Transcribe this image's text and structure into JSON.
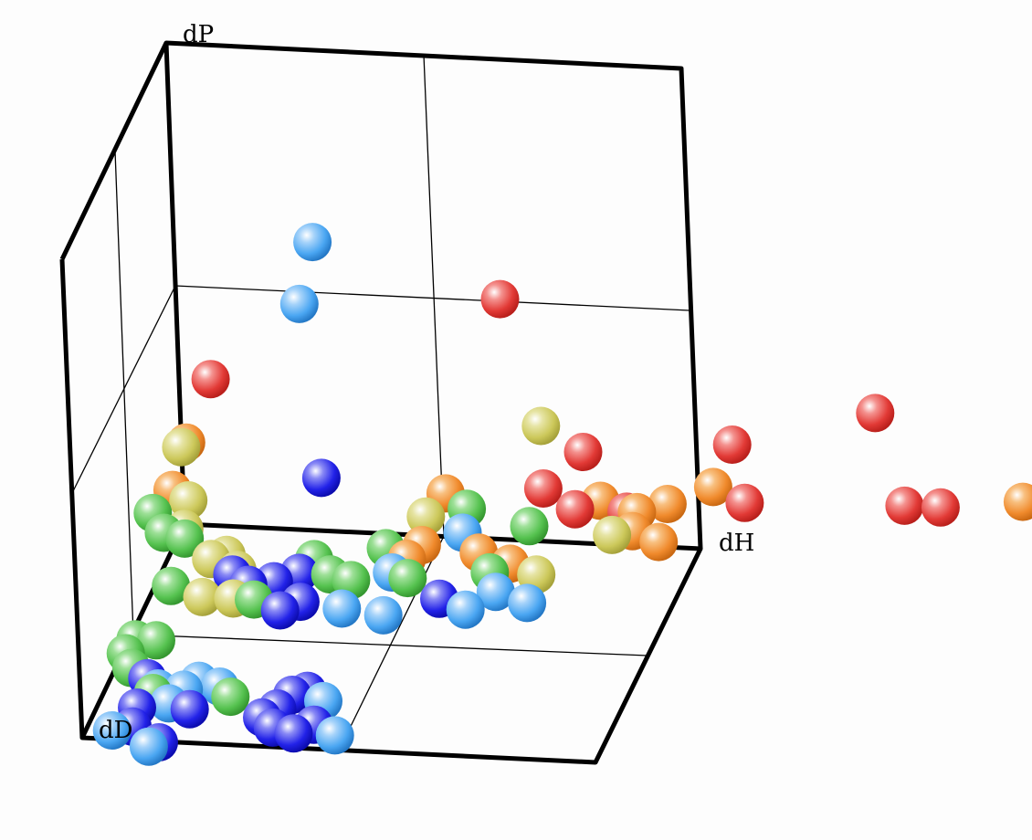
{
  "chart_data": {
    "type": "scatter",
    "subtype": "3d-scatter",
    "title": "",
    "axes": {
      "x_label": "dH",
      "y_label": "dP",
      "z_label": "dD"
    },
    "grid": true,
    "legend": "none",
    "colors": {
      "red": "#e23a36",
      "orange": "#f08a2c",
      "yellow": "#ccc85a",
      "green": "#55c24f",
      "lightblue": "#4aa6f2",
      "blue": "#2222e8"
    },
    "points": [
      {
        "x": 0.34,
        "y": 0.75,
        "z": 0.33,
        "color": "lightblue"
      },
      {
        "x": 0.31,
        "y": 0.62,
        "z": 0.33,
        "color": "lightblue"
      },
      {
        "x": 0.7,
        "y": 0.65,
        "z": 0.33,
        "color": "red"
      },
      {
        "x": 0.13,
        "y": 0.45,
        "z": 0.32,
        "color": "red"
      },
      {
        "x": 0.08,
        "y": 0.32,
        "z": 0.33,
        "color": "orange"
      },
      {
        "x": 0.07,
        "y": 0.31,
        "z": 0.33,
        "color": "yellow"
      },
      {
        "x": 0.34,
        "y": 0.26,
        "z": 0.33,
        "color": "blue"
      },
      {
        "x": 0.77,
        "y": 0.39,
        "z": 0.33,
        "color": "yellow"
      },
      {
        "x": 0.85,
        "y": 0.34,
        "z": 0.33,
        "color": "red"
      },
      {
        "x": 1.14,
        "y": 0.37,
        "z": 0.33,
        "color": "red"
      },
      {
        "x": 1.42,
        "y": 0.45,
        "z": 0.33,
        "color": "red"
      },
      {
        "x": 1.16,
        "y": 0.25,
        "z": 0.33,
        "color": "red"
      },
      {
        "x": 1.47,
        "y": 0.26,
        "z": 0.33,
        "color": "red"
      },
      {
        "x": 1.54,
        "y": 0.26,
        "z": 0.33,
        "color": "red"
      },
      {
        "x": 1.7,
        "y": 0.28,
        "z": 0.33,
        "color": "orange"
      },
      {
        "x": 1.1,
        "y": 0.28,
        "z": 0.33,
        "color": "orange"
      },
      {
        "x": 1.01,
        "y": 0.24,
        "z": 0.33,
        "color": "orange"
      },
      {
        "x": 0.95,
        "y": 0.22,
        "z": 0.33,
        "color": "orange"
      },
      {
        "x": 0.77,
        "y": 0.26,
        "z": 0.33,
        "color": "red"
      },
      {
        "x": 0.88,
        "y": 0.24,
        "z": 0.33,
        "color": "orange"
      },
      {
        "x": 0.93,
        "y": 0.22,
        "z": 0.33,
        "color": "red"
      },
      {
        "x": 0.94,
        "y": 0.18,
        "z": 0.33,
        "color": "orange"
      },
      {
        "x": 0.9,
        "y": 0.17,
        "z": 0.33,
        "color": "yellow"
      },
      {
        "x": 0.99,
        "y": 0.16,
        "z": 0.33,
        "color": "orange"
      },
      {
        "x": 0.83,
        "y": 0.22,
        "z": 0.33,
        "color": "red"
      },
      {
        "x": 0.58,
        "y": 0.24,
        "z": 0.33,
        "color": "orange"
      },
      {
        "x": 0.54,
        "y": 0.19,
        "z": 0.33,
        "color": "yellow"
      },
      {
        "x": 0.62,
        "y": 0.21,
        "z": 0.33,
        "color": "green"
      },
      {
        "x": 0.61,
        "y": 0.16,
        "z": 0.33,
        "color": "lightblue"
      },
      {
        "x": 0.64,
        "y": 0.12,
        "z": 0.33,
        "color": "orange"
      },
      {
        "x": 0.7,
        "y": 0.1,
        "z": 0.33,
        "color": "orange"
      },
      {
        "x": 0.74,
        "y": 0.18,
        "z": 0.33,
        "color": "green"
      },
      {
        "x": 0.75,
        "y": 0.08,
        "z": 0.33,
        "color": "yellow"
      },
      {
        "x": 0.53,
        "y": 0.13,
        "z": 0.33,
        "color": "orange"
      },
      {
        "x": 0.5,
        "y": 0.1,
        "z": 0.33,
        "color": "orange"
      },
      {
        "x": 0.46,
        "y": 0.12,
        "z": 0.33,
        "color": "green"
      },
      {
        "x": 0.47,
        "y": 0.07,
        "z": 0.33,
        "color": "lightblue"
      },
      {
        "x": 0.5,
        "y": 0.06,
        "z": 0.33,
        "color": "green"
      },
      {
        "x": 0.66,
        "y": 0.08,
        "z": 0.33,
        "color": "green"
      },
      {
        "x": 0.67,
        "y": 0.04,
        "z": 0.33,
        "color": "lightblue"
      },
      {
        "x": 0.73,
        "y": 0.02,
        "z": 0.33,
        "color": "lightblue"
      },
      {
        "x": 0.61,
        "y": 0.0,
        "z": 0.33,
        "color": "lightblue"
      },
      {
        "x": 0.56,
        "y": 0.02,
        "z": 0.33,
        "color": "blue"
      },
      {
        "x": 0.05,
        "y": 0.22,
        "z": 0.33,
        "color": "orange"
      },
      {
        "x": 0.08,
        "y": 0.2,
        "z": 0.33,
        "color": "yellow"
      },
      {
        "x": 0.01,
        "y": 0.17,
        "z": 0.33,
        "color": "green"
      },
      {
        "x": 0.07,
        "y": 0.14,
        "z": 0.33,
        "color": "yellow"
      },
      {
        "x": 0.03,
        "y": 0.13,
        "z": 0.33,
        "color": "green"
      },
      {
        "x": 0.07,
        "y": 0.12,
        "z": 0.33,
        "color": "green"
      },
      {
        "x": 0.12,
        "y": 0.08,
        "z": 0.33,
        "color": "yellow"
      },
      {
        "x": 0.15,
        "y": 0.09,
        "z": 0.33,
        "color": "yellow"
      },
      {
        "x": 0.17,
        "y": 0.06,
        "z": 0.33,
        "color": "yellow"
      },
      {
        "x": 0.1,
        "y": 0.0,
        "z": 0.33,
        "color": "yellow"
      },
      {
        "x": 0.16,
        "y": 0.0,
        "z": 0.33,
        "color": "yellow"
      },
      {
        "x": 0.04,
        "y": 0.02,
        "z": 0.33,
        "color": "green"
      },
      {
        "x": 0.19,
        "y": 0.03,
        "z": 0.33,
        "color": "blue"
      },
      {
        "x": 0.24,
        "y": 0.04,
        "z": 0.33,
        "color": "blue"
      },
      {
        "x": 0.29,
        "y": 0.06,
        "z": 0.33,
        "color": "blue"
      },
      {
        "x": 0.32,
        "y": 0.09,
        "z": 0.33,
        "color": "green"
      },
      {
        "x": 0.35,
        "y": 0.06,
        "z": 0.33,
        "color": "green"
      },
      {
        "x": 0.39,
        "y": 0.05,
        "z": 0.33,
        "color": "green"
      },
      {
        "x": 0.16,
        "y": 0.05,
        "z": 0.33,
        "color": "blue"
      },
      {
        "x": 0.2,
        "y": 0.0,
        "z": 0.33,
        "color": "green"
      },
      {
        "x": 0.29,
        "y": 0.0,
        "z": 0.33,
        "color": "blue"
      },
      {
        "x": 0.25,
        "y": -0.02,
        "z": 0.33,
        "color": "blue"
      },
      {
        "x": 0.37,
        "y": -0.01,
        "z": 0.33,
        "color": "lightblue"
      },
      {
        "x": 0.45,
        "y": -0.02,
        "z": 0.33,
        "color": "lightblue"
      },
      {
        "x": 0.02,
        "y": 0.03,
        "z": 0.67,
        "color": "green"
      },
      {
        "x": 0.04,
        "y": 0.06,
        "z": 0.67,
        "color": "green"
      },
      {
        "x": 0.08,
        "y": 0.06,
        "z": 0.67,
        "color": "green"
      },
      {
        "x": 0.03,
        "y": 0.0,
        "z": 0.67,
        "color": "green"
      },
      {
        "x": 0.06,
        "y": -0.02,
        "z": 0.67,
        "color": "blue"
      },
      {
        "x": 0.08,
        "y": -0.04,
        "z": 0.67,
        "color": "lightblue"
      },
      {
        "x": 0.07,
        "y": -0.05,
        "z": 0.67,
        "color": "green"
      },
      {
        "x": 0.1,
        "y": -0.07,
        "z": 0.67,
        "color": "lightblue"
      },
      {
        "x": 0.14,
        "y": -0.08,
        "z": 0.67,
        "color": "blue"
      },
      {
        "x": 0.13,
        "y": -0.04,
        "z": 0.67,
        "color": "lightblue"
      },
      {
        "x": 0.16,
        "y": -0.02,
        "z": 0.67,
        "color": "lightblue"
      },
      {
        "x": 0.2,
        "y": -0.03,
        "z": 0.67,
        "color": "lightblue"
      },
      {
        "x": 0.22,
        "y": -0.05,
        "z": 0.67,
        "color": "green"
      },
      {
        "x": 0.28,
        "y": -0.09,
        "z": 0.67,
        "color": "blue"
      },
      {
        "x": 0.31,
        "y": -0.07,
        "z": 0.67,
        "color": "blue"
      },
      {
        "x": 0.34,
        "y": -0.04,
        "z": 0.67,
        "color": "blue"
      },
      {
        "x": 0.37,
        "y": -0.03,
        "z": 0.67,
        "color": "blue"
      },
      {
        "x": 0.4,
        "y": -0.05,
        "z": 0.67,
        "color": "lightblue"
      },
      {
        "x": 0.3,
        "y": -0.11,
        "z": 0.67,
        "color": "blue"
      },
      {
        "x": 0.34,
        "y": -0.12,
        "z": 0.67,
        "color": "blue"
      },
      {
        "x": 0.38,
        "y": -0.1,
        "z": 0.67,
        "color": "blue"
      },
      {
        "x": 0.42,
        "y": -0.12,
        "z": 0.67,
        "color": "lightblue"
      },
      {
        "x": 0.05,
        "y": 0.0,
        "z": 0.96,
        "color": "lightblue"
      },
      {
        "x": 0.09,
        "y": 0.01,
        "z": 0.96,
        "color": "blue"
      },
      {
        "x": 0.1,
        "y": 0.05,
        "z": 0.96,
        "color": "blue"
      },
      {
        "x": 0.14,
        "y": -0.02,
        "z": 0.96,
        "color": "blue"
      },
      {
        "x": 0.12,
        "y": -0.03,
        "z": 0.96,
        "color": "lightblue"
      }
    ]
  }
}
